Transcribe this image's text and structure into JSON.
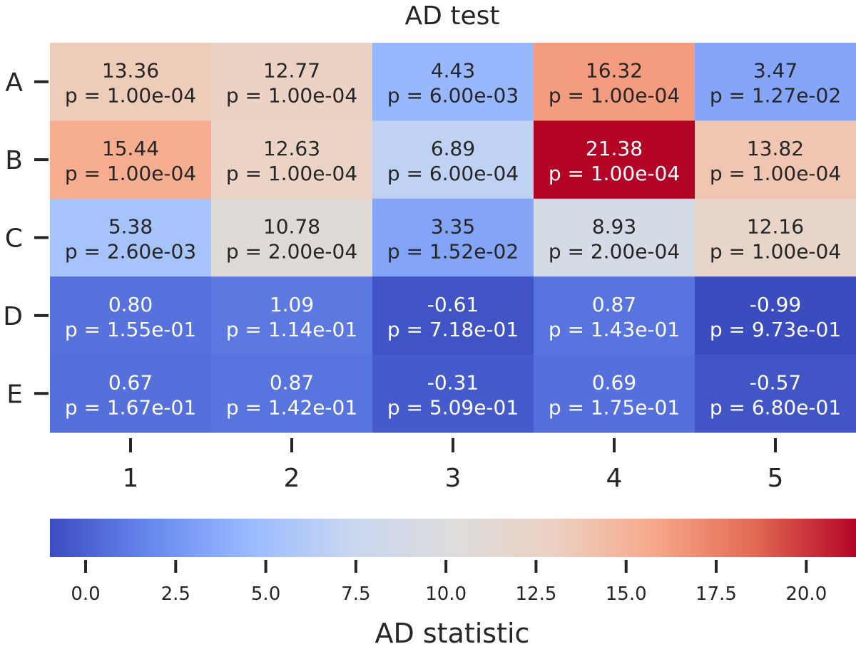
{
  "chart_data": {
    "type": "heatmap",
    "title": "AD test",
    "rows": [
      "A",
      "B",
      "C",
      "D",
      "E"
    ],
    "columns": [
      "1",
      "2",
      "3",
      "4",
      "5"
    ],
    "values": [
      [
        13.36,
        12.77,
        4.43,
        16.32,
        3.47
      ],
      [
        15.44,
        12.63,
        6.89,
        21.38,
        13.82
      ],
      [
        5.38,
        10.78,
        3.35,
        8.93,
        12.16
      ],
      [
        0.8,
        1.09,
        -0.61,
        0.87,
        -0.99
      ],
      [
        0.67,
        0.87,
        -0.31,
        0.69,
        -0.57
      ]
    ],
    "value_labels": [
      [
        "13.36",
        "12.77",
        "4.43",
        "16.32",
        "3.47"
      ],
      [
        "15.44",
        "12.63",
        "6.89",
        "21.38",
        "13.82"
      ],
      [
        "5.38",
        "10.78",
        "3.35",
        "8.93",
        "12.16"
      ],
      [
        "0.80",
        "1.09",
        "-0.61",
        "0.87",
        "-0.99"
      ],
      [
        "0.67",
        "0.87",
        "-0.31",
        "0.69",
        "-0.57"
      ]
    ],
    "p_labels": [
      [
        "p = 1.00e-04",
        "p = 1.00e-04",
        "p = 6.00e-03",
        "p = 1.00e-04",
        "p = 1.27e-02"
      ],
      [
        "p = 1.00e-04",
        "p = 1.00e-04",
        "p = 6.00e-04",
        "p = 1.00e-04",
        "p = 1.00e-04"
      ],
      [
        "p = 2.60e-03",
        "p = 2.00e-04",
        "p = 1.52e-02",
        "p = 2.00e-04",
        "p = 1.00e-04"
      ],
      [
        "p = 1.55e-01",
        "p = 1.14e-01",
        "p = 7.18e-01",
        "p = 1.43e-01",
        "p = 9.73e-01"
      ],
      [
        "p = 1.67e-01",
        "p = 1.42e-01",
        "p = 5.09e-01",
        "p = 1.75e-01",
        "p = 6.80e-01"
      ]
    ],
    "colormap": "coolwarm",
    "colormap_stops": [
      "#3b4cc0",
      "#6788ee",
      "#9abbff",
      "#c9d7f0",
      "#dddddd",
      "#edd1c2",
      "#f7a889",
      "#e26952",
      "#b40426"
    ],
    "vmin": -0.99,
    "vmax": 21.38,
    "colorbar": {
      "label": "AD statistic",
      "orientation": "horizontal",
      "ticks": [
        0.0,
        2.5,
        5.0,
        7.5,
        10.0,
        12.5,
        15.0,
        17.5,
        20.0
      ],
      "tick_labels": [
        "0.0",
        "2.5",
        "5.0",
        "7.5",
        "10.0",
        "12.5",
        "15.0",
        "17.5",
        "20.0"
      ]
    },
    "text_color_dark": "#262626",
    "text_color_light": "#ffffff"
  }
}
